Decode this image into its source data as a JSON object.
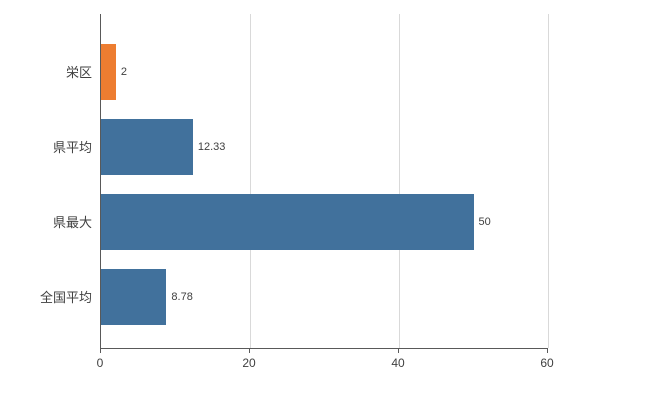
{
  "chart_data": {
    "type": "bar",
    "orientation": "horizontal",
    "title": "",
    "xlabel": "",
    "ylabel": "",
    "categories": [
      "栄区",
      "県平均",
      "県最大",
      "全国平均"
    ],
    "values": [
      2,
      12.33,
      50,
      8.78
    ],
    "value_labels": [
      "2",
      "12.33",
      "50",
      "8.78"
    ],
    "bar_colors": [
      "#ED7D31",
      "#41719C",
      "#41719C",
      "#41719C"
    ],
    "xlim": [
      0,
      60
    ],
    "xticks": [
      0,
      20,
      40,
      60
    ],
    "xtick_labels": [
      "0",
      "20",
      "40",
      "60"
    ],
    "grid": true,
    "legend": "none",
    "colors": {
      "axis": "#595959",
      "grid": "#D9D9D9",
      "text": "#404040",
      "background": "#FFFFFF"
    }
  }
}
